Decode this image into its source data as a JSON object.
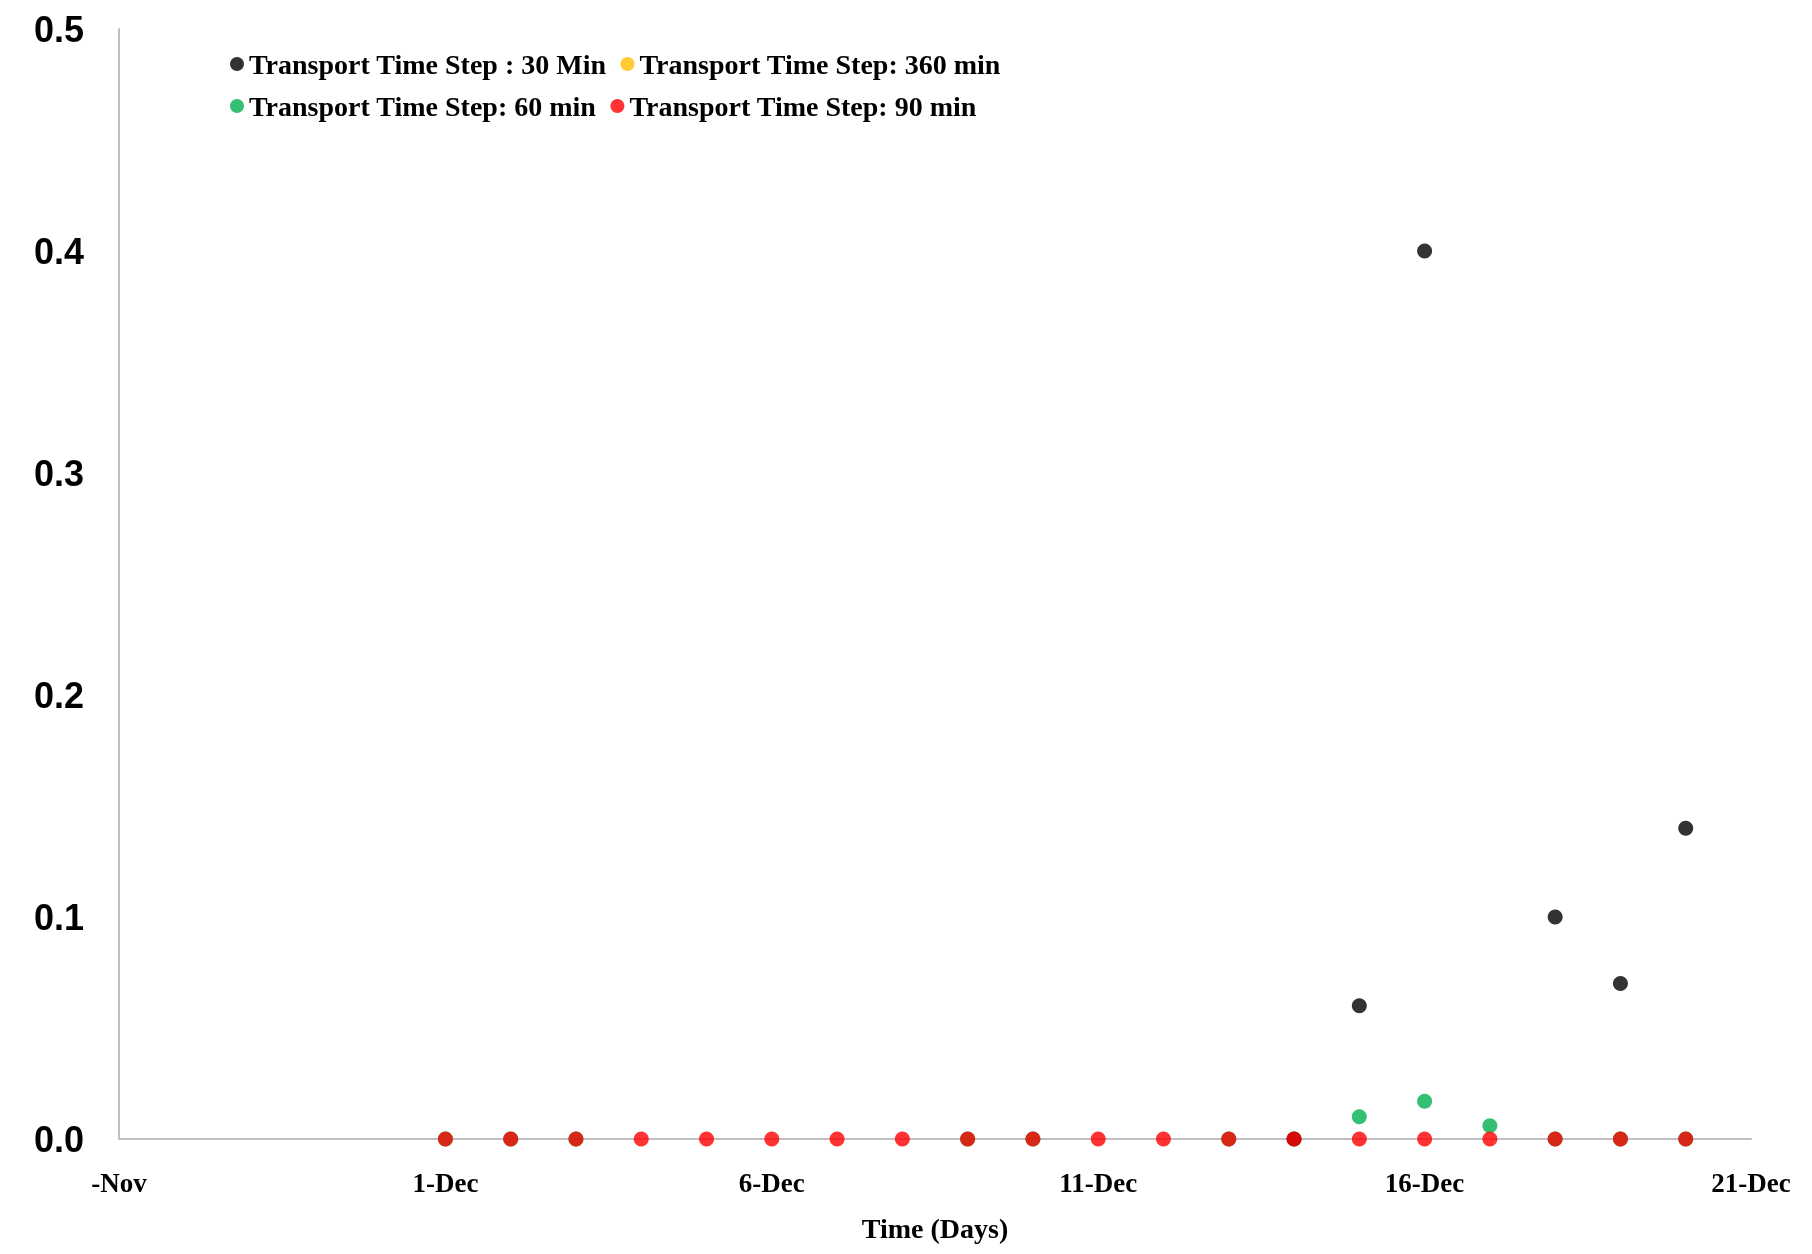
{
  "chart_data": {
    "type": "scatter",
    "xlabel": "Time (Days)",
    "x": [
      "--12-01",
      "--12-02",
      "--12-03",
      "--12-04",
      "--12-05",
      "--12-06",
      "--12-07",
      "--12-08",
      "--12-09",
      "--12-10",
      "--12-11",
      "--12-12",
      "--12-13",
      "--12-14",
      "--12-15",
      "--12-16",
      "--12-17",
      "--12-18",
      "--12-19",
      "--12-20"
    ],
    "series": [
      {
        "name": "Transport Time Step : 30 Min",
        "color": "#000000",
        "values": [
          null,
          null,
          null,
          null,
          null,
          null,
          null,
          null,
          null,
          null,
          null,
          null,
          null,
          0,
          0.06,
          0.4,
          null,
          0.1,
          0.07,
          0.14
        ]
      },
      {
        "name": "Transport Time Step: 360 min",
        "color": "#ffc000",
        "values": [
          null,
          null,
          null,
          null,
          null,
          null,
          null,
          null,
          null,
          null,
          null,
          null,
          null,
          null,
          null,
          null,
          null,
          null,
          null,
          null
        ]
      },
      {
        "name": "Transport Time Step: 60 min",
        "color": "#00b050",
        "values": [
          0,
          0,
          0,
          null,
          null,
          null,
          null,
          null,
          0,
          0,
          null,
          null,
          0,
          null,
          0.01,
          0.017,
          0.006,
          0,
          0,
          0
        ]
      },
      {
        "name": "Transport Time Step: 90 min",
        "color": "#ff0000",
        "values": [
          0,
          0,
          0,
          0,
          0,
          0,
          0,
          0,
          0,
          0,
          0,
          0,
          0,
          0,
          0,
          0,
          0,
          0,
          0,
          0
        ]
      }
    ],
    "xlim": [
      "--11-26",
      "--12-21"
    ],
    "xticks": [
      {
        "value": "--11-26",
        "label": "-Nov"
      },
      {
        "value": "--12-01",
        "label": "1-Dec"
      },
      {
        "value": "--12-06",
        "label": "6-Dec"
      },
      {
        "value": "--12-11",
        "label": "11-Dec"
      },
      {
        "value": "--12-16",
        "label": "16-Dec"
      },
      {
        "value": "--12-21",
        "label": "21-Dec"
      }
    ],
    "ylim": [
      0,
      0.5
    ],
    "yticks": [
      {
        "value": 0,
        "label": "0.0"
      },
      {
        "value": 0.1,
        "label": "0.1"
      },
      {
        "value": 0.2,
        "label": "0.2"
      },
      {
        "value": 0.3,
        "label": "0.3"
      },
      {
        "value": 0.4,
        "label": "0.4"
      },
      {
        "value": 0.5,
        "label": "0.5"
      }
    ],
    "grid": false,
    "legend": "top left",
    "marker": "circle"
  }
}
